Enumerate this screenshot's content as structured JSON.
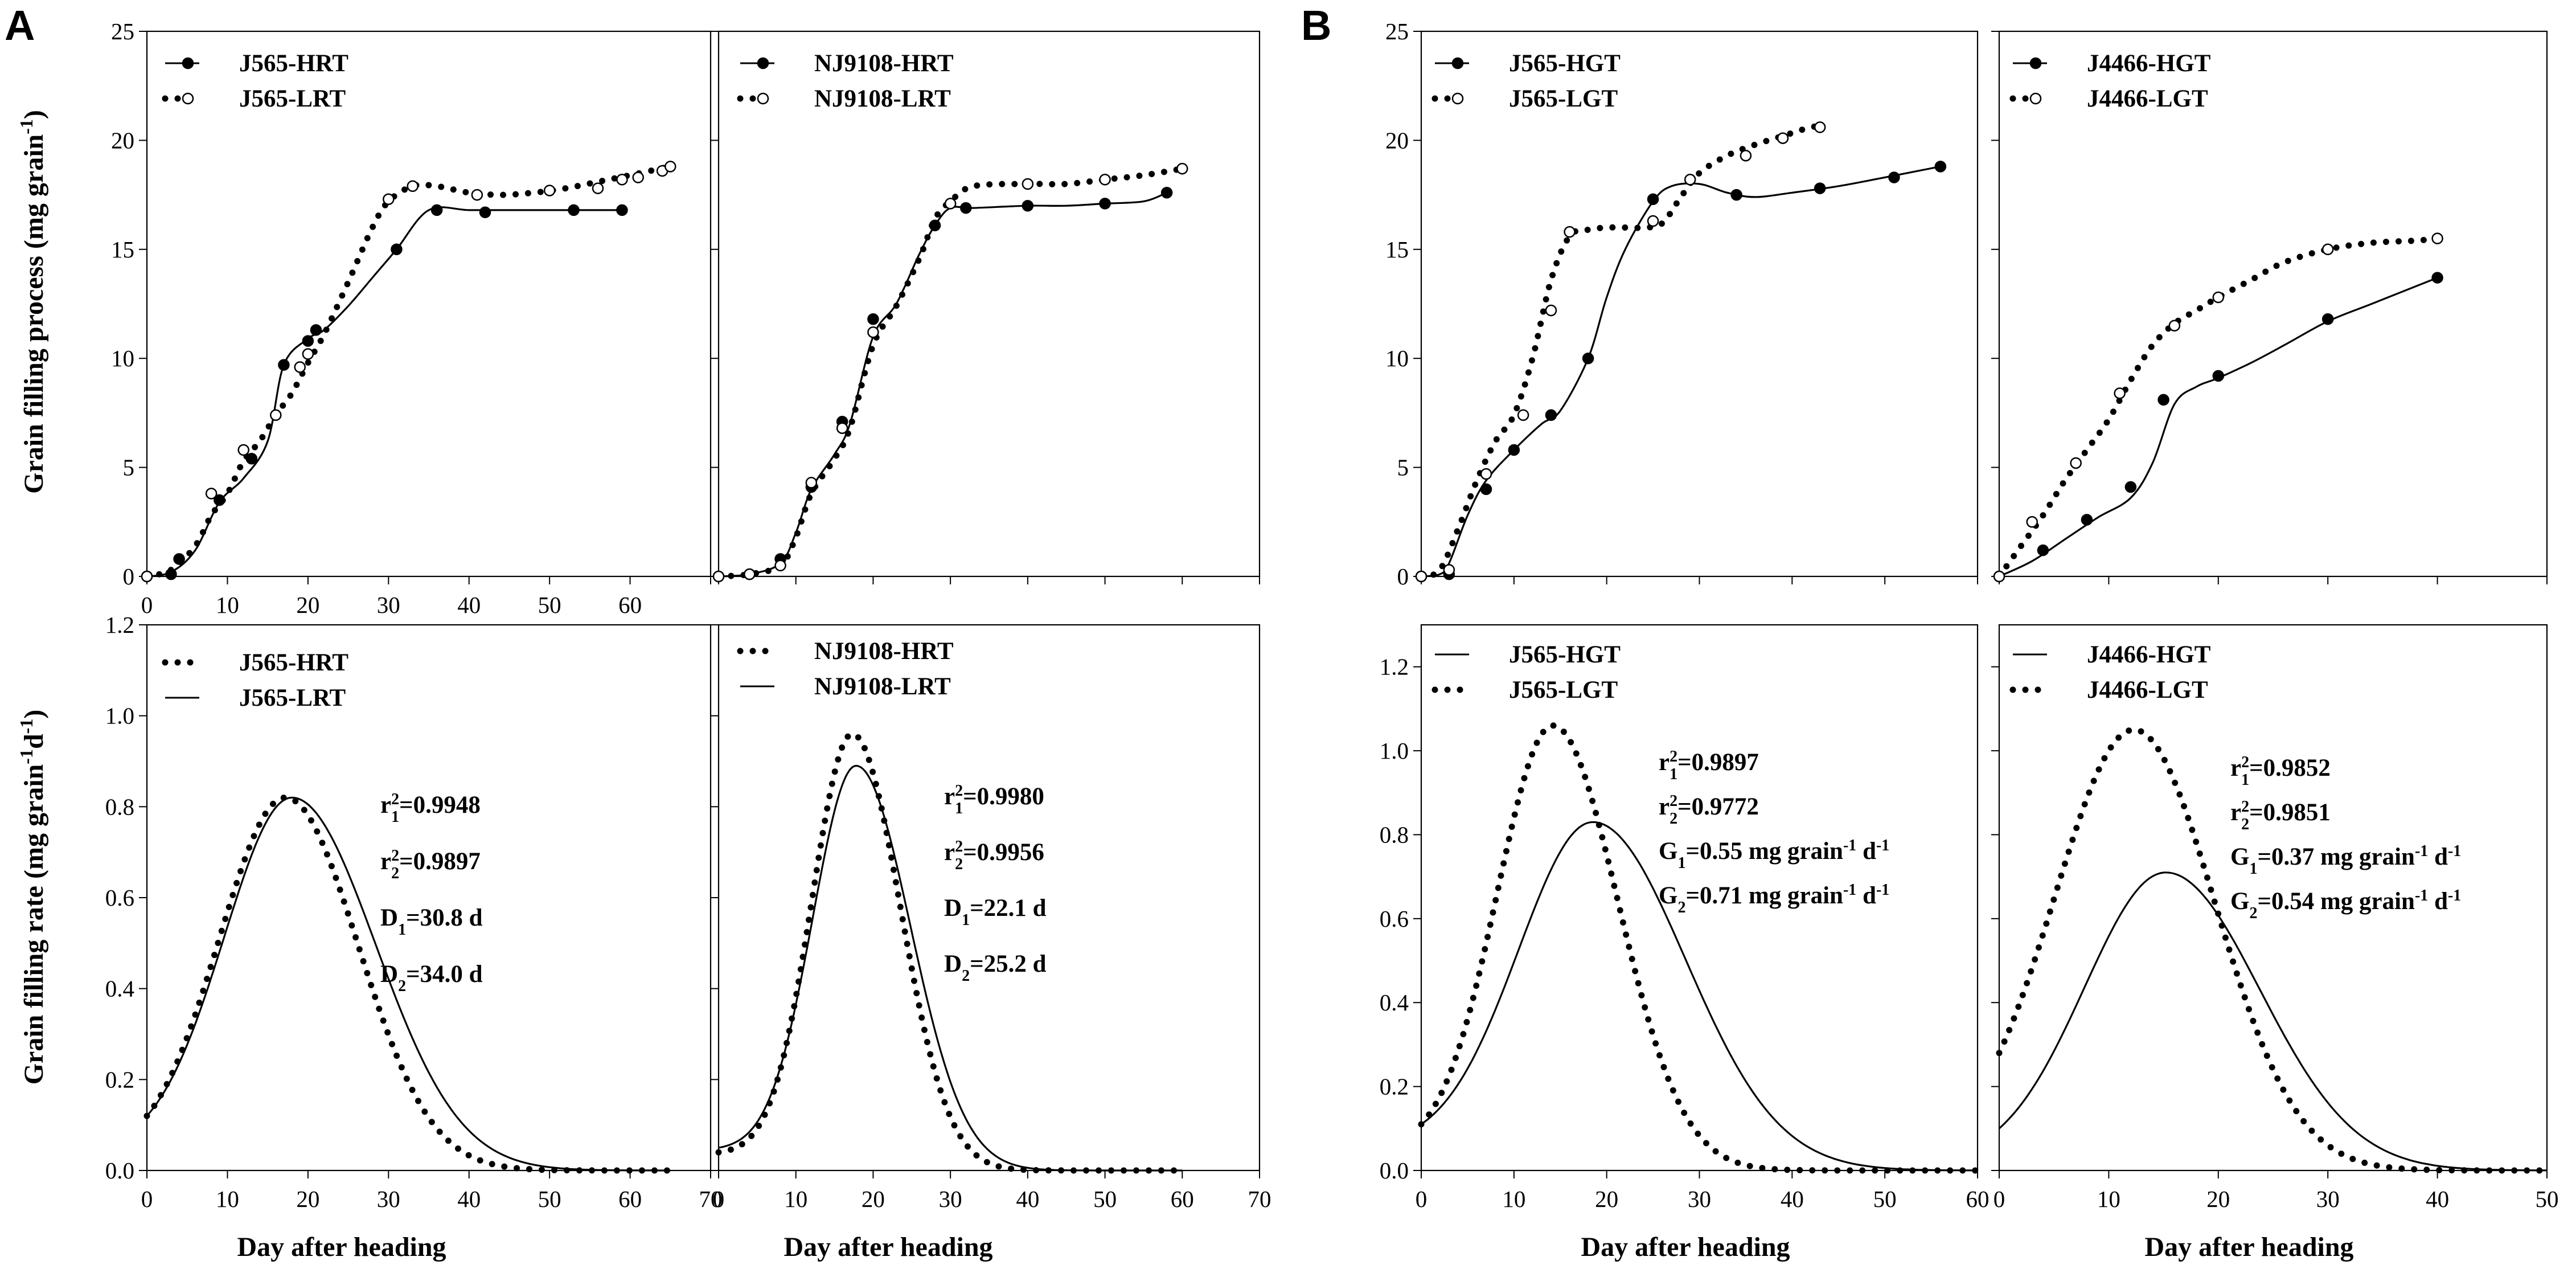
{
  "figure": {
    "panel_labels": [
      "A",
      "B"
    ],
    "ylabel_top": "Grain filling process (mg grain",
    "ylabel_top_sup": "-1",
    "ylabel_top_end": ")",
    "ylabel_bottom": "Grain filling rate (mg grain",
    "ylabel_bottom_sup": "-1",
    "ylabel_bottom_mid": "d",
    "ylabel_bottom_sup2": "-1",
    "ylabel_bottom_end": ")",
    "xlabel": "Day after heading"
  },
  "chart_data": [
    {
      "id": "A-top-left",
      "type": "line",
      "xlim": [
        0,
        70
      ],
      "ylim": [
        0,
        25
      ],
      "xticks": [
        "0",
        "10",
        "20",
        "30",
        "40",
        "50",
        "60"
      ],
      "yticks": [
        "0",
        "5",
        "10",
        "15",
        "20",
        "25"
      ],
      "series": [
        {
          "name": "J565-HRT",
          "style": "solid",
          "marker": "filled",
          "x": [
            0,
            3,
            6,
            9,
            12,
            15,
            17,
            20,
            22,
            25,
            28,
            31,
            35,
            40,
            45,
            50,
            54,
            59
          ],
          "y": [
            0,
            0.2,
            1.2,
            3.4,
            4.5,
            6.2,
            9.7,
            10.9,
            11.3,
            12.4,
            13.7,
            15.0,
            16.8,
            16.8,
            16.8,
            16.8,
            16.8,
            16.8
          ],
          "markers_x": [
            0,
            3,
            4,
            9,
            13,
            17,
            20,
            21,
            31,
            36,
            42,
            53,
            59
          ],
          "markers_y": [
            0,
            0.1,
            0.8,
            3.5,
            5.4,
            9.7,
            10.8,
            11.3,
            15.0,
            16.8,
            16.7,
            16.8,
            16.8
          ]
        },
        {
          "name": "J565-LRT",
          "style": "dotted",
          "marker": "open",
          "x": [
            0,
            3,
            6,
            8,
            10,
            12,
            14,
            16,
            18,
            20,
            22,
            25,
            28,
            30,
            33,
            36,
            40,
            44,
            48,
            52,
            56,
            60,
            65
          ],
          "y": [
            0,
            0.3,
            1.4,
            2.8,
            3.8,
            5.3,
            6.2,
            7.4,
            8.4,
            9.8,
            11.1,
            13.5,
            16.0,
            17.2,
            17.9,
            17.9,
            17.6,
            17.5,
            17.6,
            17.8,
            18.1,
            18.4,
            18.8
          ],
          "markers_x": [
            0,
            8,
            12,
            16,
            19,
            20,
            30,
            33,
            41,
            50,
            56,
            59,
            61,
            64,
            65
          ],
          "markers_y": [
            0,
            3.8,
            5.8,
            7.4,
            9.6,
            10.2,
            17.3,
            17.9,
            17.5,
            17.7,
            17.8,
            18.2,
            18.3,
            18.6,
            18.8
          ]
        }
      ],
      "legend": [
        "J565-HRT",
        "J565-LRT"
      ]
    },
    {
      "id": "A-top-right",
      "type": "line",
      "xlim": [
        0,
        70
      ],
      "ylim": [
        0,
        25
      ],
      "xticks": [],
      "yticks": [],
      "series": [
        {
          "name": "NJ9108-HRT",
          "style": "solid",
          "marker": "filled",
          "x": [
            0,
            4,
            8,
            10,
            12,
            15,
            17,
            20,
            23,
            26,
            28,
            30,
            33,
            40,
            45,
            50,
            55,
            58
          ],
          "y": [
            0,
            0.1,
            0.6,
            2.0,
            4.0,
            5.6,
            7.0,
            11.0,
            12.5,
            14.8,
            16.1,
            16.9,
            16.9,
            17.0,
            17.0,
            17.1,
            17.2,
            17.6
          ],
          "markers_x": [
            0,
            4,
            8,
            12,
            16,
            20,
            28,
            32,
            40,
            50,
            58
          ],
          "markers_y": [
            0,
            0.1,
            0.8,
            4.1,
            7.1,
            11.8,
            16.1,
            16.9,
            17.0,
            17.1,
            17.6
          ],
          "note": "line runs up to x=58"
        },
        {
          "name": "NJ9108-LRT",
          "style": "dotted",
          "marker": "open",
          "x": [
            0,
            4,
            8,
            10,
            12,
            15,
            17,
            20,
            23,
            26,
            28,
            30,
            33,
            40,
            45,
            50,
            55,
            60
          ],
          "y": [
            0,
            0.1,
            0.5,
            1.8,
            3.8,
            5.4,
            6.8,
            10.6,
            12.4,
            14.6,
            16.4,
            17.2,
            17.9,
            18.0,
            18.0,
            18.2,
            18.4,
            18.7
          ],
          "markers_x": [
            0,
            4,
            8,
            12,
            16,
            20,
            30,
            40,
            50,
            60
          ],
          "markers_y": [
            0,
            0.1,
            0.5,
            4.3,
            6.8,
            11.2,
            17.1,
            18.0,
            18.2,
            18.7
          ]
        }
      ],
      "legend": [
        "NJ9108-HRT",
        "NJ9108-LRT"
      ]
    },
    {
      "id": "A-bottom-left",
      "type": "line",
      "xlim": [
        0,
        70
      ],
      "ylim": [
        0,
        1.2
      ],
      "xticks": [
        "0",
        "10",
        "20",
        "30",
        "40",
        "50",
        "60",
        "70"
      ],
      "yticks": [
        "0.0",
        "0.2",
        "0.4",
        "0.6",
        "0.8",
        "1.0",
        "1.2"
      ],
      "series": [
        {
          "name": "J565-HRT",
          "style": "dotted",
          "peak_x": 17.2,
          "peak_y": 0.82,
          "start_y": 0.12,
          "width_left": 8.2,
          "width_right": 9.0,
          "x_end": 65
        },
        {
          "name": "J565-LRT",
          "style": "solid",
          "peak_x": 18.0,
          "peak_y": 0.82,
          "start_y": 0.12,
          "width_left": 8.4,
          "width_right": 10.4,
          "x_end": 65
        }
      ],
      "legend": [
        "J565-HRT",
        "J565-LRT"
      ],
      "annotations": [
        {
          "base": "r",
          "sub": "1",
          "sup": "2",
          "text": "=0.9948"
        },
        {
          "base": "r",
          "sub": "2",
          "sup": "2",
          "text": "=0.9897"
        },
        {
          "base": "D",
          "sub": "1",
          "text": "=30.8 d"
        },
        {
          "base": "D",
          "sub": "2",
          "text": "=34.0 d"
        }
      ]
    },
    {
      "id": "A-bottom-right",
      "type": "line",
      "xlim": [
        0,
        70
      ],
      "ylim": [
        0,
        1.2
      ],
      "xticks": [
        "0",
        "10",
        "20",
        "30",
        "40",
        "50",
        "60",
        "70"
      ],
      "yticks": [],
      "series": [
        {
          "name": "NJ9108-HRT",
          "style": "dotted",
          "peak_x": 17.3,
          "peak_y": 0.96,
          "start_y": 0.04,
          "width_left": 5.2,
          "width_right": 6.2,
          "x_end": 60
        },
        {
          "name": "NJ9108-LRT",
          "style": "solid",
          "peak_x": 17.8,
          "peak_y": 0.89,
          "start_y": 0.05,
          "width_left": 5.6,
          "width_right": 7.0,
          "x_end": 60
        }
      ],
      "legend": [
        "NJ9108-HRT",
        "NJ9108-LRT"
      ],
      "annotations": [
        {
          "base": "r",
          "sub": "1",
          "sup": "2",
          "text": "=0.9980"
        },
        {
          "base": "r",
          "sub": "2",
          "sup": "2",
          "text": "=0.9956"
        },
        {
          "base": "D",
          "sub": "1",
          "text": "=22.1 d"
        },
        {
          "base": "D",
          "sub": "2",
          "text": "=25.2 d"
        }
      ]
    },
    {
      "id": "B-top-left",
      "type": "line",
      "xlim": [
        0,
        60
      ],
      "ylim": [
        0,
        25
      ],
      "xticks": [],
      "yticks": [
        "0",
        "5",
        "10",
        "15",
        "20",
        "25"
      ],
      "series": [
        {
          "name": "J565-HGT",
          "style": "solid",
          "marker": "filled",
          "x": [
            0,
            2,
            3,
            5,
            7,
            10,
            13,
            15,
            18,
            20,
            22,
            25,
            27,
            30,
            33,
            36,
            40,
            45,
            50,
            56
          ],
          "y": [
            0,
            0.1,
            0.6,
            2.8,
            4.4,
            5.8,
            7.0,
            7.6,
            10.0,
            12.8,
            15.0,
            17.2,
            17.9,
            18.0,
            17.6,
            17.4,
            17.6,
            17.9,
            18.3,
            18.8
          ],
          "markers_x": [
            0,
            3,
            7,
            10,
            14,
            18,
            25,
            34,
            43,
            51,
            56
          ],
          "markers_y": [
            0,
            0.1,
            4.0,
            5.8,
            7.4,
            10.0,
            17.3,
            17.5,
            17.8,
            18.3,
            18.8
          ]
        },
        {
          "name": "J565-LGT",
          "style": "dotted",
          "marker": "open",
          "x": [
            0,
            2,
            4,
            6,
            8,
            10,
            12,
            14,
            16,
            18,
            20,
            22,
            24,
            26,
            28,
            30,
            33,
            36,
            39,
            42,
            43
          ],
          "y": [
            0,
            0.3,
            2.2,
            4.4,
            6.2,
            7.4,
            10.0,
            13.6,
            15.6,
            15.9,
            16.0,
            16.0,
            16.0,
            16.2,
            17.4,
            18.5,
            19.3,
            19.8,
            20.2,
            20.6,
            20.6
          ],
          "markers_x": [
            0,
            3,
            7,
            11,
            14,
            16,
            25,
            29,
            35,
            39,
            43
          ],
          "markers_y": [
            0,
            0.3,
            4.7,
            7.4,
            12.2,
            15.8,
            16.3,
            18.2,
            19.3,
            20.1,
            20.6
          ]
        }
      ],
      "legend": [
        "J565-HGT",
        "J565-LGT"
      ]
    },
    {
      "id": "B-top-right",
      "type": "line",
      "xlim": [
        0,
        50
      ],
      "ylim": [
        0,
        25
      ],
      "xticks": [],
      "yticks": [],
      "series": [
        {
          "name": "J4466-HGT",
          "style": "solid",
          "marker": "filled",
          "x": [
            0,
            3,
            6,
            9,
            12,
            14,
            16,
            18,
            20,
            23,
            26,
            30,
            34,
            38,
            40
          ],
          "y": [
            0,
            0.7,
            1.7,
            2.7,
            3.6,
            5.2,
            7.9,
            8.7,
            9.1,
            9.8,
            10.6,
            11.7,
            12.5,
            13.3,
            13.7
          ],
          "markers_x": [
            0,
            4,
            8,
            12,
            15,
            20,
            30,
            40
          ],
          "markers_y": [
            0,
            1.2,
            2.6,
            4.1,
            8.1,
            9.2,
            11.8,
            13.7
          ]
        },
        {
          "name": "J4466-LGT",
          "style": "dotted",
          "marker": "open",
          "x": [
            0,
            2,
            4,
            6,
            8,
            10,
            12,
            14,
            16,
            18,
            20,
            23,
            26,
            30,
            34,
            38,
            40
          ],
          "y": [
            0,
            1.4,
            2.8,
            4.4,
            5.8,
            7.2,
            9.0,
            10.6,
            11.6,
            12.2,
            12.8,
            13.6,
            14.4,
            15.0,
            15.3,
            15.4,
            15.5
          ],
          "markers_x": [
            0,
            3,
            7,
            11,
            16,
            20,
            30,
            40
          ],
          "markers_y": [
            0,
            2.5,
            5.2,
            8.4,
            11.5,
            12.8,
            15.0,
            15.5
          ]
        }
      ],
      "legend": [
        "J4466-HGT",
        "J4466-LGT"
      ]
    },
    {
      "id": "B-bottom-left",
      "type": "line",
      "xlim": [
        0,
        60
      ],
      "ylim": [
        0,
        1.3
      ],
      "xticks": [
        "0",
        "10",
        "20",
        "30",
        "40",
        "50",
        "60"
      ],
      "yticks": [
        "0.0",
        "0.2",
        "0.4",
        "0.6",
        "0.8",
        "1.0",
        "1.2"
      ],
      "series": [
        {
          "name": "J565-HGT",
          "style": "solid",
          "peak_x": 18.5,
          "peak_y": 0.83,
          "start_y": 0.11,
          "width_left": 8.0,
          "width_right": 10.0,
          "x_end": 60
        },
        {
          "name": "J565-LGT",
          "style": "dotted",
          "peak_x": 14.2,
          "peak_y": 1.06,
          "start_y": 0.11,
          "width_left": 6.0,
          "width_right": 7.0,
          "x_end": 60
        }
      ],
      "legend": [
        "J565-HGT",
        "J565-LGT"
      ],
      "annotations": [
        {
          "base": "r",
          "sub": "1",
          "sup": "2",
          "text": "=0.9897"
        },
        {
          "base": "r",
          "sub": "2",
          "sup": "2",
          "text": "=0.9772"
        },
        {
          "base": "G",
          "sub": "1",
          "text": "=0.55 mg grain",
          "sup2": "-1",
          "tail": " d",
          "sup3": "-1"
        },
        {
          "base": "G",
          "sub": "2",
          "text": "=0.71 mg grain",
          "sup2": "-1",
          "tail": " d",
          "sup3": "-1"
        }
      ]
    },
    {
      "id": "B-bottom-right",
      "type": "line",
      "xlim": [
        0,
        50
      ],
      "ylim": [
        0,
        1.3
      ],
      "xticks": [
        "0",
        "10",
        "20",
        "30",
        "40",
        "50"
      ],
      "yticks": [],
      "series": [
        {
          "name": "J4466-HGT",
          "style": "solid",
          "peak_x": 15.2,
          "peak_y": 0.71,
          "start_y": 0.1,
          "width_left": 7.4,
          "width_right": 8.6,
          "x_end": 50
        },
        {
          "name": "J4466-LGT",
          "style": "dotted",
          "peak_x": 12.3,
          "peak_y": 1.05,
          "start_y": 0.28,
          "width_left": 7.2,
          "width_right": 7.4,
          "x_end": 50
        }
      ],
      "legend": [
        "J4466-HGT",
        "J4466-LGT"
      ],
      "annotations": [
        {
          "base": "r",
          "sub": "1",
          "sup": "2",
          "text": "=0.9852"
        },
        {
          "base": "r",
          "sub": "2",
          "sup": "2",
          "text": "=0.9851"
        },
        {
          "base": "G",
          "sub": "1",
          "text": "=0.37 mg grain",
          "sup2": "-1",
          "tail": " d",
          "sup3": "-1"
        },
        {
          "base": "G",
          "sub": "2",
          "text": "=0.54 mg grain",
          "sup2": "-1",
          "tail": " d",
          "sup3": "-1"
        }
      ]
    }
  ]
}
